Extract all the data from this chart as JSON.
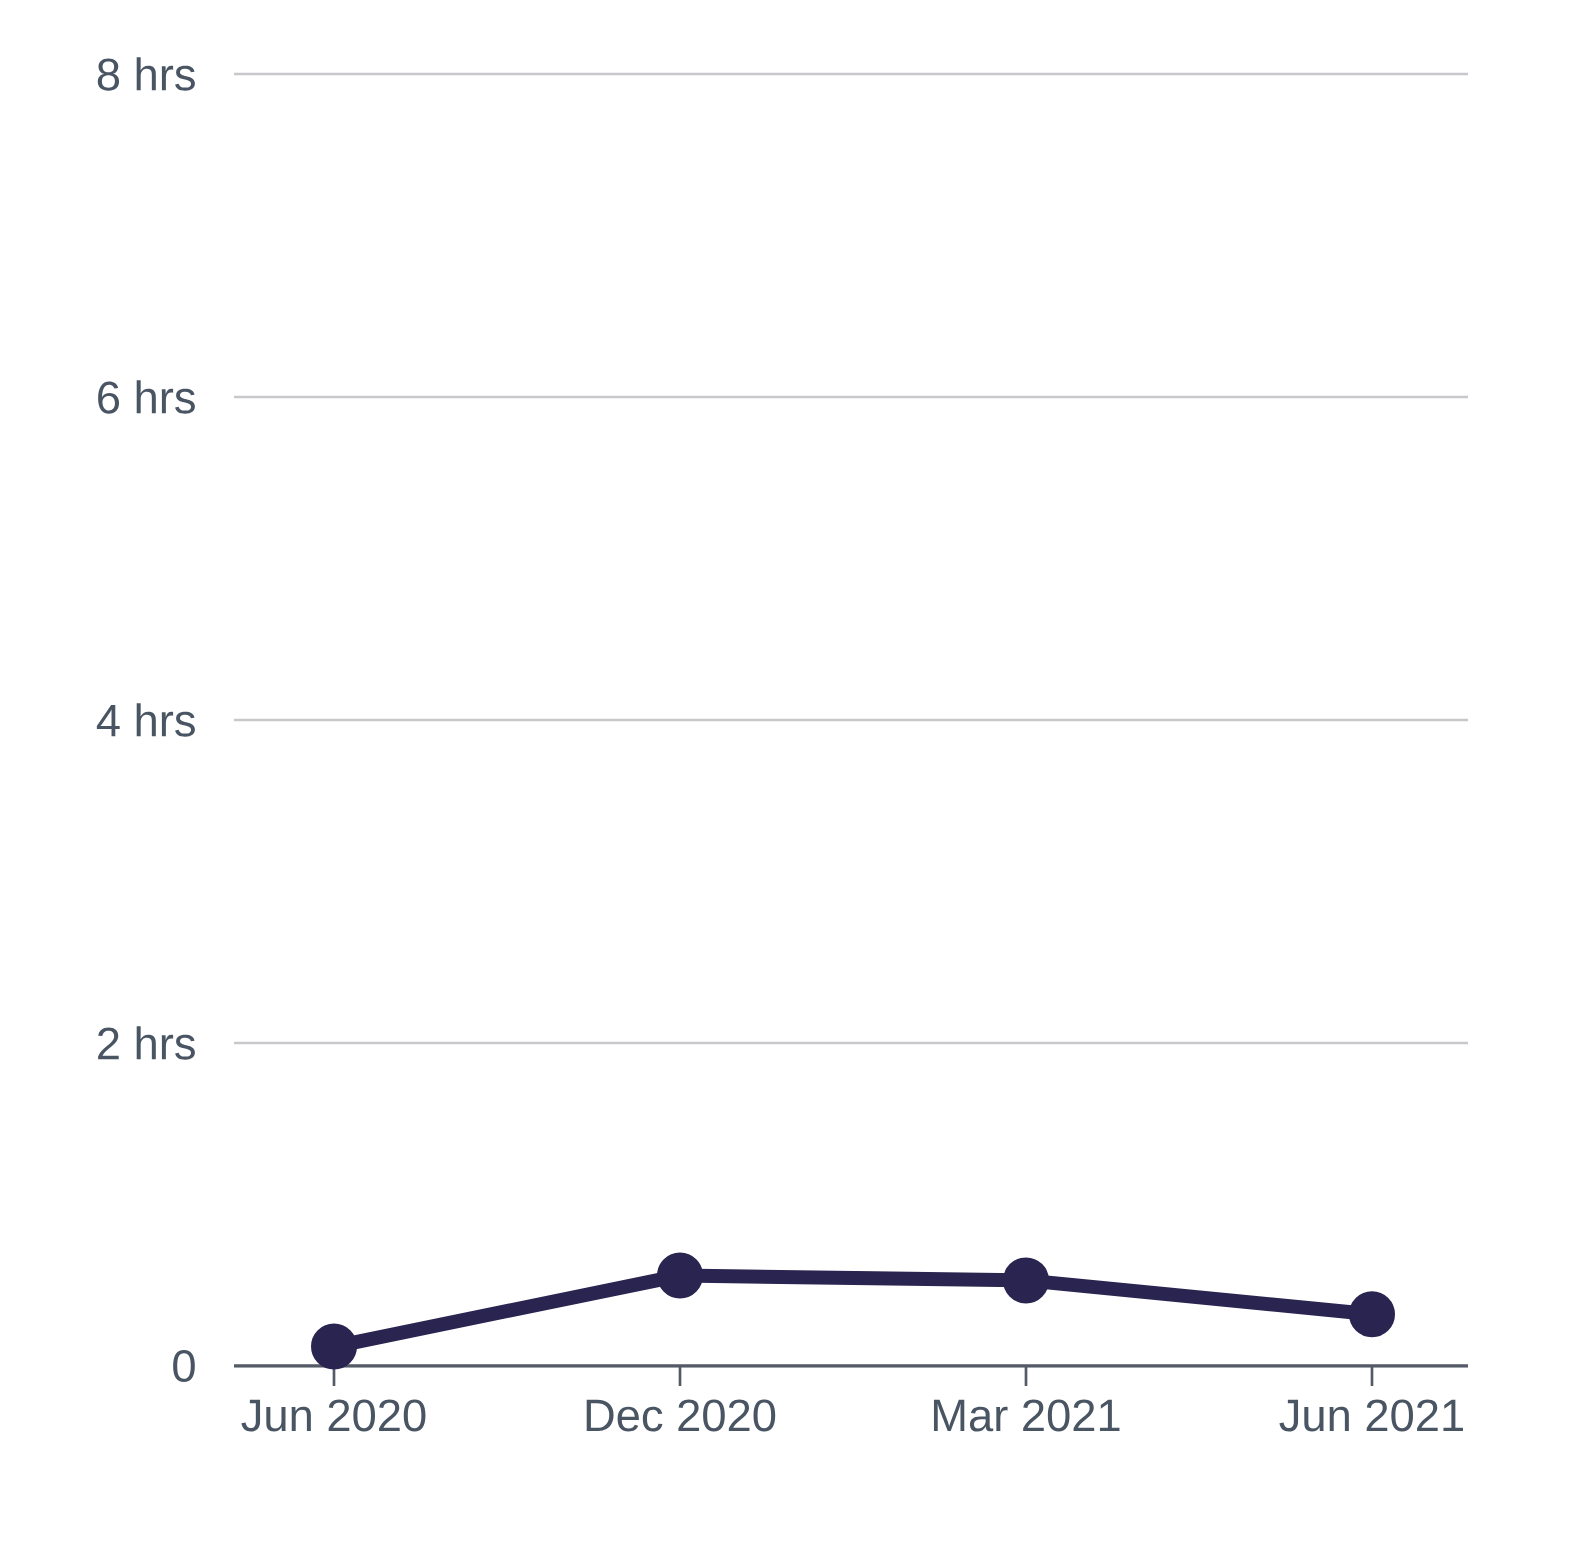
{
  "chart_data": {
    "type": "line",
    "categories": [
      "Jun 2020",
      "Dec 2020",
      "Mar 2021",
      "Jun 2021"
    ],
    "series": [
      {
        "color": "#2a2450",
        "values": [
          0.12,
          0.56,
          0.53,
          0.32
        ]
      }
    ],
    "ylim": [
      0,
      8
    ],
    "yticks": [
      0,
      {
        "value": 2,
        "label": "2 hrs"
      },
      {
        "value": 4,
        "label": "4 hrs"
      },
      {
        "value": 6,
        "label": "6 hrs"
      },
      {
        "value": 8,
        "label": "8 hrs"
      }
    ],
    "grid": "y",
    "marker": "circle",
    "line_style": "solid"
  }
}
